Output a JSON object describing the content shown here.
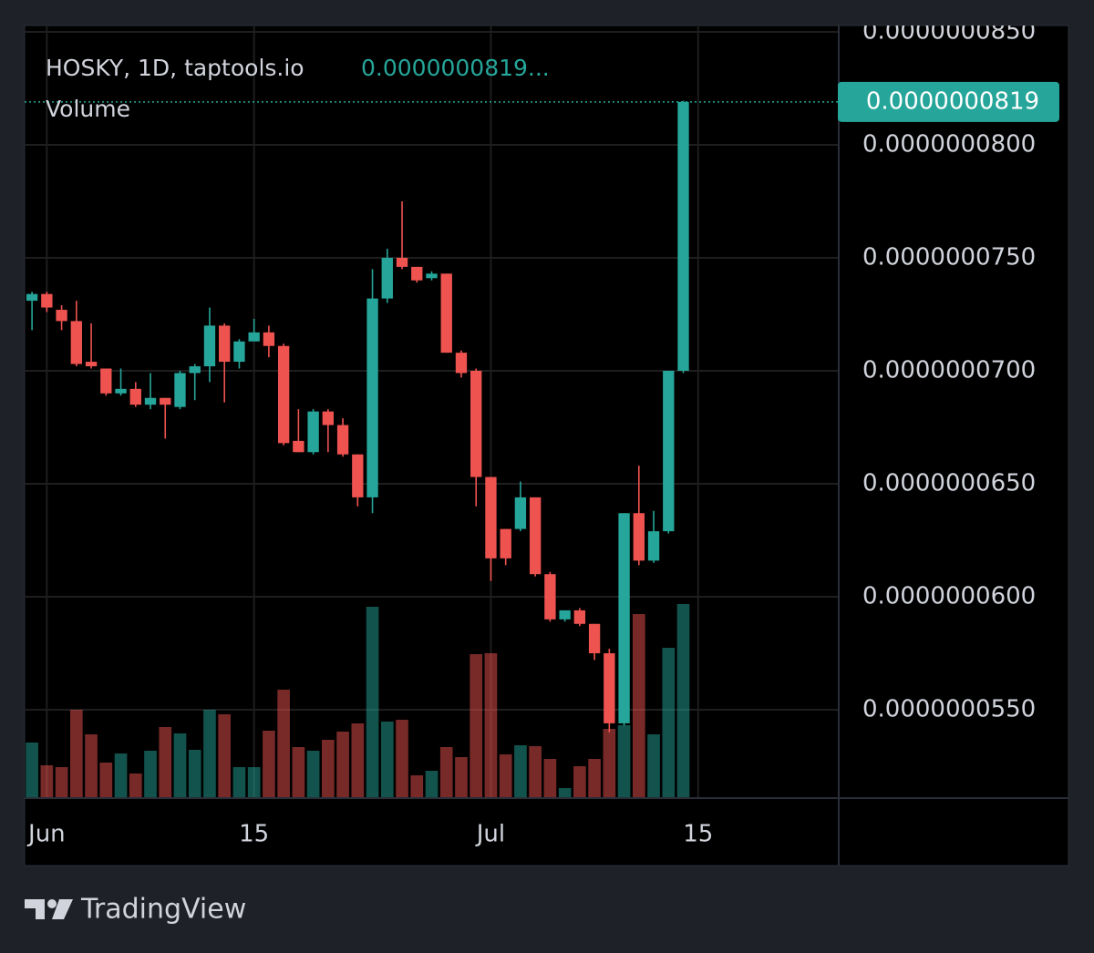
{
  "chart_data": {
    "type": "candlestick",
    "title": "HOSKY, 1D, taptools.io",
    "legend_price": "0.0000000819...",
    "volume_label": "Volume",
    "categories": [
      null,
      "Jun",
      null,
      null,
      null,
      null,
      null,
      null,
      null,
      null,
      null,
      null,
      null,
      null,
      null,
      "15",
      null,
      null,
      null,
      null,
      null,
      null,
      null,
      null,
      null,
      null,
      null,
      null,
      null,
      null,
      null,
      "Jul",
      null,
      null,
      null,
      null,
      null,
      null,
      null,
      null,
      null,
      null,
      null,
      null,
      null,
      "15",
      null,
      null,
      null,
      null,
      null,
      null,
      null,
      null,
      null
    ],
    "open": [
      7.31e-08,
      7.34e-08,
      7.27e-08,
      7.22e-08,
      7.04e-08,
      7.01e-08,
      6.9e-08,
      6.92e-08,
      6.85e-08,
      6.88e-08,
      6.84e-08,
      6.99e-08,
      7.02e-08,
      7.2e-08,
      7.04e-08,
      7.13e-08,
      7.17e-08,
      7.11e-08,
      6.69e-08,
      6.64e-08,
      6.82e-08,
      6.76e-08,
      6.63e-08,
      6.44e-08,
      7.32e-08,
      7.5e-08,
      7.46e-08,
      7.41e-08,
      7.43e-08,
      7.08e-08,
      7e-08,
      6.53e-08,
      6.3e-08,
      6.3e-08,
      6.44e-08,
      6.1e-08,
      5.9e-08,
      5.94e-08,
      5.88e-08,
      5.75e-08,
      5.44e-08,
      6.37e-08,
      6.16e-08,
      6.29e-08,
      7e-08,
      null,
      null,
      null,
      null,
      null,
      null,
      null,
      null,
      null,
      null
    ],
    "high": [
      7.35e-08,
      7.35e-08,
      7.29e-08,
      7.31e-08,
      7.21e-08,
      7.01e-08,
      7.01e-08,
      6.95e-08,
      6.99e-08,
      6.88e-08,
      7e-08,
      7.03e-08,
      7.28e-08,
      7.21e-08,
      7.14e-08,
      7.23e-08,
      7.2e-08,
      7.12e-08,
      6.83e-08,
      6.83e-08,
      6.83e-08,
      6.79e-08,
      6.63e-08,
      7.45e-08,
      7.54e-08,
      7.75e-08,
      7.46e-08,
      7.44e-08,
      7.43e-08,
      7.09e-08,
      7.01e-08,
      6.53e-08,
      6.3e-08,
      6.51e-08,
      6.44e-08,
      6.11e-08,
      5.94e-08,
      5.95e-08,
      5.88e-08,
      5.77e-08,
      6.37e-08,
      6.58e-08,
      6.38e-08,
      7e-08,
      8.195e-08,
      null,
      null,
      null,
      null,
      null,
      null,
      null,
      null,
      null,
      null
    ],
    "low": [
      7.18e-08,
      7.26e-08,
      7.18e-08,
      7.02e-08,
      7.01e-08,
      6.89e-08,
      6.89e-08,
      6.84e-08,
      6.83e-08,
      6.7e-08,
      6.83e-08,
      6.87e-08,
      6.95e-08,
      6.86e-08,
      7.01e-08,
      7.13e-08,
      7.06e-08,
      6.67e-08,
      6.64e-08,
      6.63e-08,
      6.64e-08,
      6.62e-08,
      6.4e-08,
      6.37e-08,
      7.3e-08,
      7.45e-08,
      7.39e-08,
      7.4e-08,
      7.08e-08,
      6.97e-08,
      6.4e-08,
      6.07e-08,
      6.14e-08,
      6.29e-08,
      6.09e-08,
      5.89e-08,
      5.89e-08,
      5.87e-08,
      5.72e-08,
      5.4e-08,
      5.43e-08,
      6.14e-08,
      6.15e-08,
      6.28e-08,
      6.99e-08,
      null,
      null,
      null,
      null,
      null,
      null,
      null,
      null,
      null,
      null
    ],
    "close": [
      7.34e-08,
      7.28e-08,
      7.22e-08,
      7.03e-08,
      7.02e-08,
      6.9e-08,
      6.92e-08,
      6.85e-08,
      6.88e-08,
      6.85e-08,
      6.99e-08,
      7.02e-08,
      7.2e-08,
      7.04e-08,
      7.13e-08,
      7.17e-08,
      7.11e-08,
      6.68e-08,
      6.64e-08,
      6.82e-08,
      6.76e-08,
      6.63e-08,
      6.44e-08,
      7.32e-08,
      7.5e-08,
      7.46e-08,
      7.4e-08,
      7.43e-08,
      7.08e-08,
      6.99e-08,
      6.53e-08,
      6.17e-08,
      6.17e-08,
      6.44e-08,
      6.1e-08,
      5.9e-08,
      5.94e-08,
      5.88e-08,
      5.75e-08,
      5.44e-08,
      6.37e-08,
      6.16e-08,
      6.29e-08,
      7e-08,
      8.19e-08,
      null,
      null,
      null,
      null,
      null,
      null,
      null,
      null,
      null,
      null
    ],
    "volume": [
      61,
      36,
      34,
      97,
      70,
      39,
      49,
      27,
      52,
      78,
      71,
      53,
      97,
      92,
      34,
      34,
      74,
      119,
      56,
      52,
      64,
      73,
      82,
      210,
      84,
      86,
      25,
      30,
      56,
      45,
      158,
      159,
      48,
      58,
      57,
      43,
      11,
      35,
      43,
      76,
      80,
      202,
      70,
      165,
      213,
      null,
      null,
      null,
      null,
      null,
      null,
      null,
      null,
      null,
      null
    ],
    "up_color": "#26a69a",
    "down_color": "#ef5350",
    "ylim": [
      5.109e-08,
      8.528e-08
    ],
    "yticks": [
      {
        "value": 5.5e-08,
        "label": "0.0000000550"
      },
      {
        "value": 6e-08,
        "label": "0.0000000600"
      },
      {
        "value": 6.5e-08,
        "label": "0.0000000650"
      },
      {
        "value": 7e-08,
        "label": "0.0000000700"
      },
      {
        "value": 7.5e-08,
        "label": "0.0000000750"
      },
      {
        "value": 8e-08,
        "label": "0.0000000800"
      },
      {
        "value": 8.5e-08,
        "label": "0.0000000850"
      }
    ],
    "grid": true,
    "last_price": {
      "value": 8.19e-08,
      "label": "0.0000000819"
    }
  },
  "branding": "TradingView"
}
